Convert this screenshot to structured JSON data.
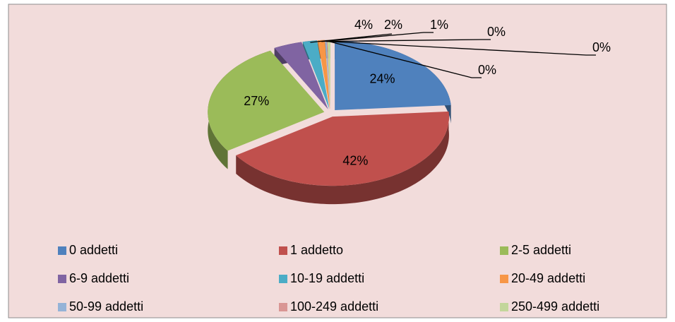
{
  "chart_data": {
    "type": "pie",
    "categories": [
      "0 addetti",
      "1 addetto",
      "2-5 addetti",
      "6-9 addetti",
      "10-19 addetti",
      "20-49 addetti",
      "50-99 addetti",
      "100-249 addetti",
      "250-499 addetti"
    ],
    "values": [
      24,
      42,
      27,
      4,
      2,
      1,
      0.2,
      0.1,
      0.4
    ],
    "value_labels": [
      "24%",
      "42%",
      "27%",
      "4%",
      "2%",
      "1%",
      "0%",
      "0%",
      "0%"
    ],
    "colors": [
      "#4f81bd",
      "#c0504d",
      "#9bbb59",
      "#8064a2",
      "#4bacc6",
      "#f79646",
      "#95b3d7",
      "#d99694",
      "#c3d69b"
    ],
    "legend": "bottom"
  }
}
